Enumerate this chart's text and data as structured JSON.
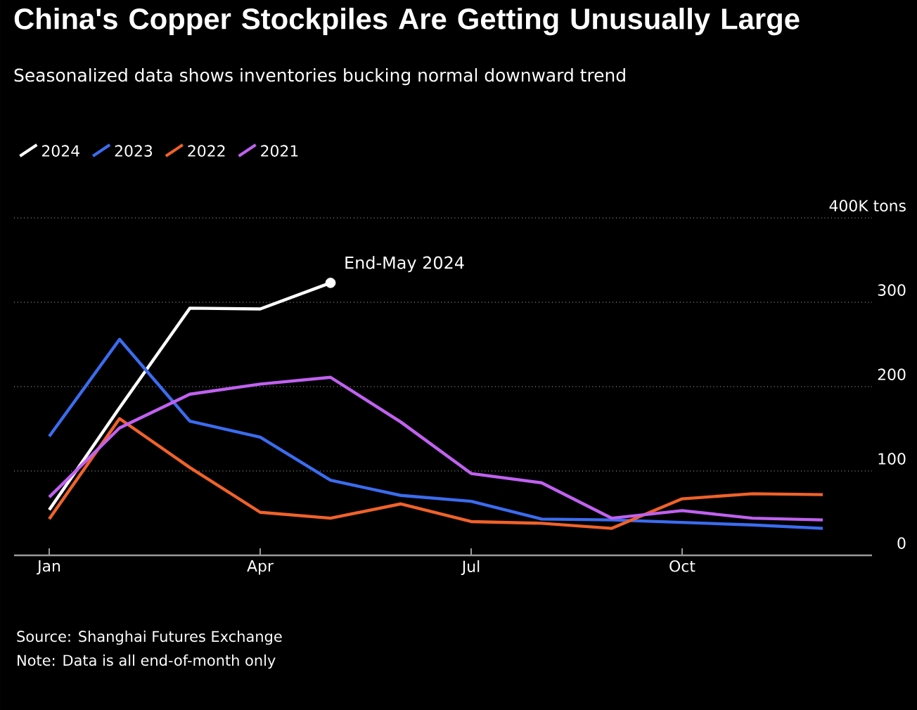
{
  "chart_data": {
    "type": "line",
    "title": "China's Copper Stockpiles Are Getting Unusually Large",
    "subtitle": "Seasonalized data shows inventories bucking normal downward trend",
    "categories": [
      "Jan",
      null,
      null,
      "Apr",
      null,
      null,
      "Jul",
      null,
      null,
      "Oct",
      null,
      null
    ],
    "series": [
      {
        "name": "2024",
        "color": "#ffffff",
        "values": [
          54,
          175,
          293,
          292,
          323,
          null,
          null,
          null,
          null,
          null,
          null,
          null
        ]
      },
      {
        "name": "2023",
        "color": "#3b6cf0",
        "values": [
          141,
          256,
          159,
          140,
          89,
          71,
          64,
          43,
          42,
          39,
          36,
          32
        ]
      },
      {
        "name": "2022",
        "color": "#f0622a",
        "values": [
          43,
          162,
          104,
          51,
          44,
          61,
          40,
          38,
          32,
          67,
          73,
          72
        ]
      },
      {
        "name": "2021",
        "color": "#c061f0",
        "values": [
          69,
          151,
          191,
          203,
          211,
          158,
          97,
          86,
          44,
          53,
          44,
          42
        ]
      }
    ],
    "ylim": [
      0,
      400
    ],
    "yticks": [
      0,
      100,
      200,
      300,
      {
        "value": 400,
        "label": "400K tons"
      }
    ],
    "grid": "y",
    "legend": "top left",
    "annotations": [
      "End-May 2024",
      "Source: Shanghai Futures Exchange",
      "Note: Data is all end-of-month only"
    ]
  }
}
